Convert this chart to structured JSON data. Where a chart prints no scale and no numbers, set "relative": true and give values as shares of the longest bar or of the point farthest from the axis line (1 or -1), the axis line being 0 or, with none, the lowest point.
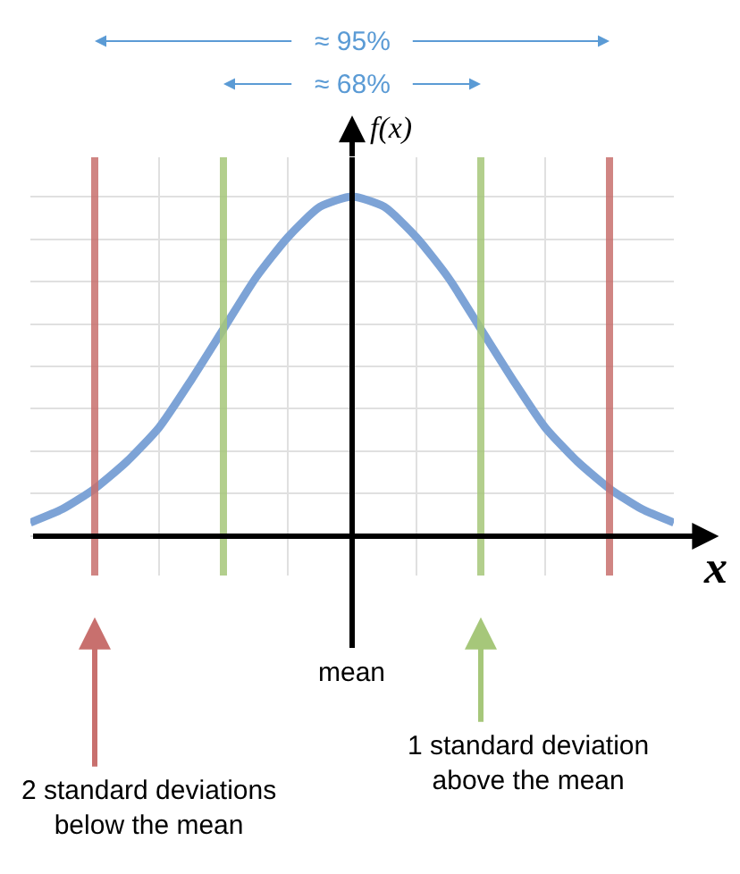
{
  "chart_data": {
    "type": "line",
    "relative": true,
    "xlabel": "x",
    "ylabel": "f(x)",
    "grid": true,
    "categories": [
      null,
      null,
      null,
      null,
      null,
      null,
      null,
      null,
      null,
      null,
      null,
      null,
      null,
      null,
      null,
      null,
      null,
      null,
      null,
      null,
      null
    ],
    "series": [
      {
        "color": "#7da3d6",
        "values": [
          0.04,
          0.08,
          0.14,
          0.22,
          0.32,
          0.46,
          0.61,
          0.76,
          0.88,
          0.97,
          1,
          0.97,
          0.88,
          0.76,
          0.61,
          0.46,
          0.32,
          0.22,
          0.14,
          0.08,
          0.04
        ]
      }
    ],
    "annotations": [
      "≈ 95%",
      "≈ 68%",
      "mean",
      "2 standard deviations below the mean",
      "1 standard deviation above the mean"
    ]
  }
}
